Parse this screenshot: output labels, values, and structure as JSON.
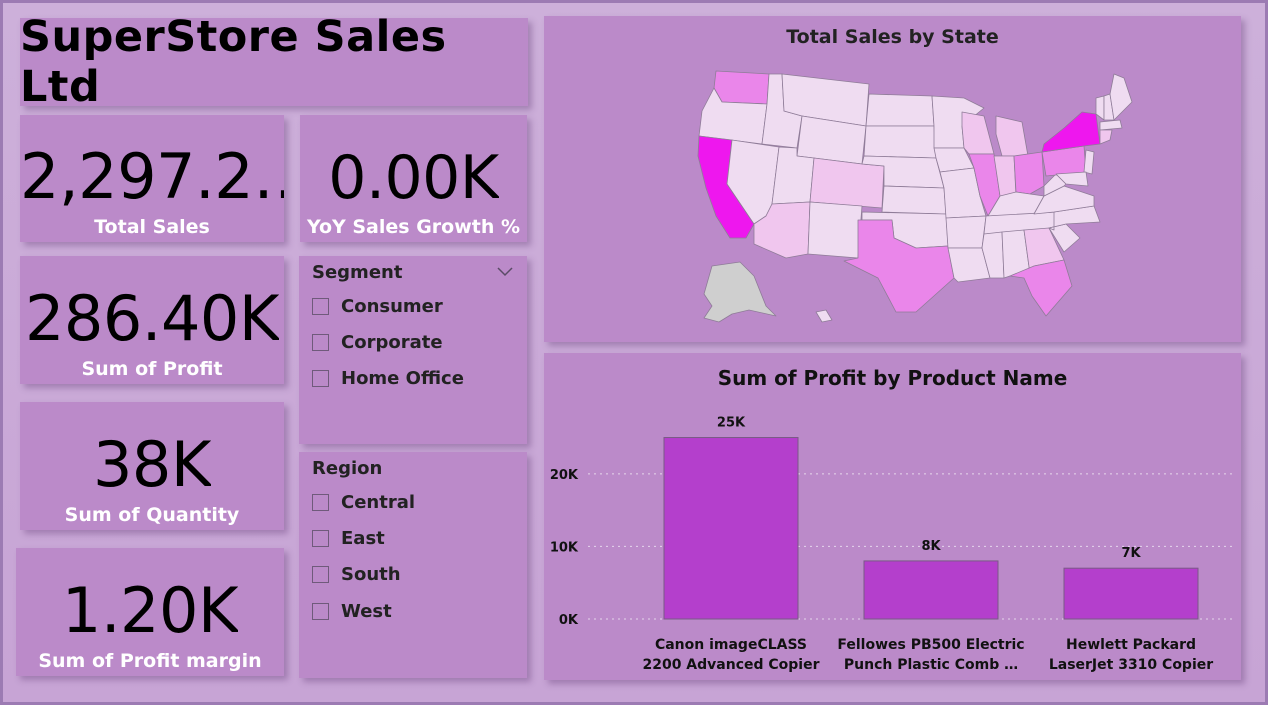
{
  "header": {
    "title": "SuperStore Sales Ltd"
  },
  "kpis": {
    "total_sales": {
      "value": "2,297.2…",
      "label": "Total Sales"
    },
    "yoy_growth": {
      "value": "0.00K",
      "label": "YoY Sales Growth %"
    },
    "profit": {
      "value": "286.40K",
      "label": "Sum of Profit"
    },
    "quantity": {
      "value": "38K",
      "label": "Sum of Quantity"
    },
    "profit_margin": {
      "value": "1.20K",
      "label": "Sum of Profit margin"
    }
  },
  "slicers": {
    "segment": {
      "title": "Segment",
      "items": [
        "Consumer",
        "Corporate",
        "Home Office"
      ]
    },
    "region": {
      "title": "Region",
      "items": [
        "Central",
        "East",
        "South",
        "West"
      ]
    }
  },
  "map": {
    "title": "Total Sales by State",
    "colors": {
      "high": "#ee17ee",
      "mid": "#ea86ea",
      "low": "#f0c6ee",
      "base": "#efdcf1",
      "none": "#cfcfcf"
    }
  },
  "chart_data": {
    "type": "bar",
    "title": "Sum of Profit by Product Name",
    "categories": [
      [
        "Canon imageCLASS",
        "2200 Advanced Copier"
      ],
      [
        "Fellowes PB500 Electric",
        "Punch Plastic Comb …"
      ],
      [
        "Hewlett Packard",
        "LaserJet 3310 Copier"
      ]
    ],
    "values": [
      25000,
      8000,
      7000
    ],
    "data_labels": [
      "25K",
      "8K",
      "7K"
    ],
    "ylim": [
      0,
      27000
    ],
    "yticks": [
      0,
      10000,
      20000
    ],
    "ytick_labels": [
      "0K",
      "10K",
      "20K"
    ],
    "bar_color": "#b43fcc",
    "grid": true
  }
}
